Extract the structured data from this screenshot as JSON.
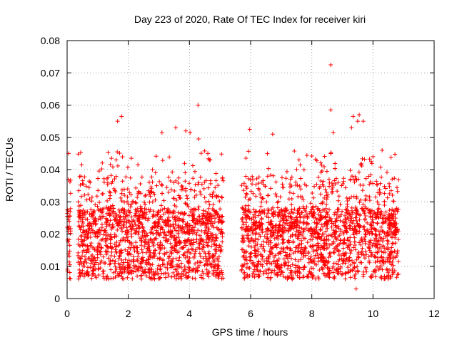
{
  "chart_data": {
    "type": "scatter",
    "title": "Day 223 of 2020, Rate Of TEC Index for receiver kiri",
    "xlabel": "GPS time / hours",
    "ylabel": "ROTI / TECUs",
    "xlim": [
      0,
      12
    ],
    "ylim": [
      0,
      0.08
    ],
    "xticks": [
      0,
      2,
      4,
      6,
      8,
      10,
      12
    ],
    "yticks": [
      0,
      0.01,
      0.02,
      0.03,
      0.04,
      0.05,
      0.06,
      0.07,
      0.08
    ],
    "xtick_labels": [
      "0",
      "2",
      "4",
      "6",
      "8",
      "10",
      "12"
    ],
    "ytick_labels": [
      "0",
      "0.01",
      "0.02",
      "0.03",
      "0.04",
      "0.05",
      "0.06",
      "0.07",
      "0.08"
    ],
    "grid": true,
    "marker": "+",
    "marker_color": "#ff0000",
    "data_segments": [
      {
        "x_start": 0.0,
        "x_end": 0.12,
        "y_base": 0.016
      },
      {
        "x_start": 0.35,
        "x_end": 5.1,
        "y_base": 0.018
      },
      {
        "x_start": 5.7,
        "x_end": 10.85,
        "y_base": 0.018
      }
    ],
    "notable_points": [
      {
        "x": 8.62,
        "y": 0.0725
      },
      {
        "x": 4.28,
        "y": 0.06
      },
      {
        "x": 8.62,
        "y": 0.0585
      },
      {
        "x": 1.78,
        "y": 0.0565
      },
      {
        "x": 9.55,
        "y": 0.057
      },
      {
        "x": 9.35,
        "y": 0.0565
      },
      {
        "x": 1.65,
        "y": 0.055
      },
      {
        "x": 3.55,
        "y": 0.053
      },
      {
        "x": 9.5,
        "y": 0.055
      },
      {
        "x": 5.97,
        "y": 0.0525
      },
      {
        "x": 9.3,
        "y": 0.053
      },
      {
        "x": 9.68,
        "y": 0.055
      },
      {
        "x": 3.88,
        "y": 0.052
      },
      {
        "x": 6.72,
        "y": 0.051
      },
      {
        "x": 3.1,
        "y": 0.0515
      },
      {
        "x": 4.02,
        "y": 0.0515
      },
      {
        "x": 8.7,
        "y": 0.0515
      },
      {
        "x": 4.3,
        "y": 0.0495
      },
      {
        "x": 4.6,
        "y": 0.045
      },
      {
        "x": 0.05,
        "y": 0.045
      },
      {
        "x": 10.3,
        "y": 0.046
      },
      {
        "x": 10.0,
        "y": 0.044
      },
      {
        "x": 1.45,
        "y": 0.0435
      },
      {
        "x": 2.1,
        "y": 0.0435
      },
      {
        "x": 9.45,
        "y": 0.003
      }
    ]
  }
}
